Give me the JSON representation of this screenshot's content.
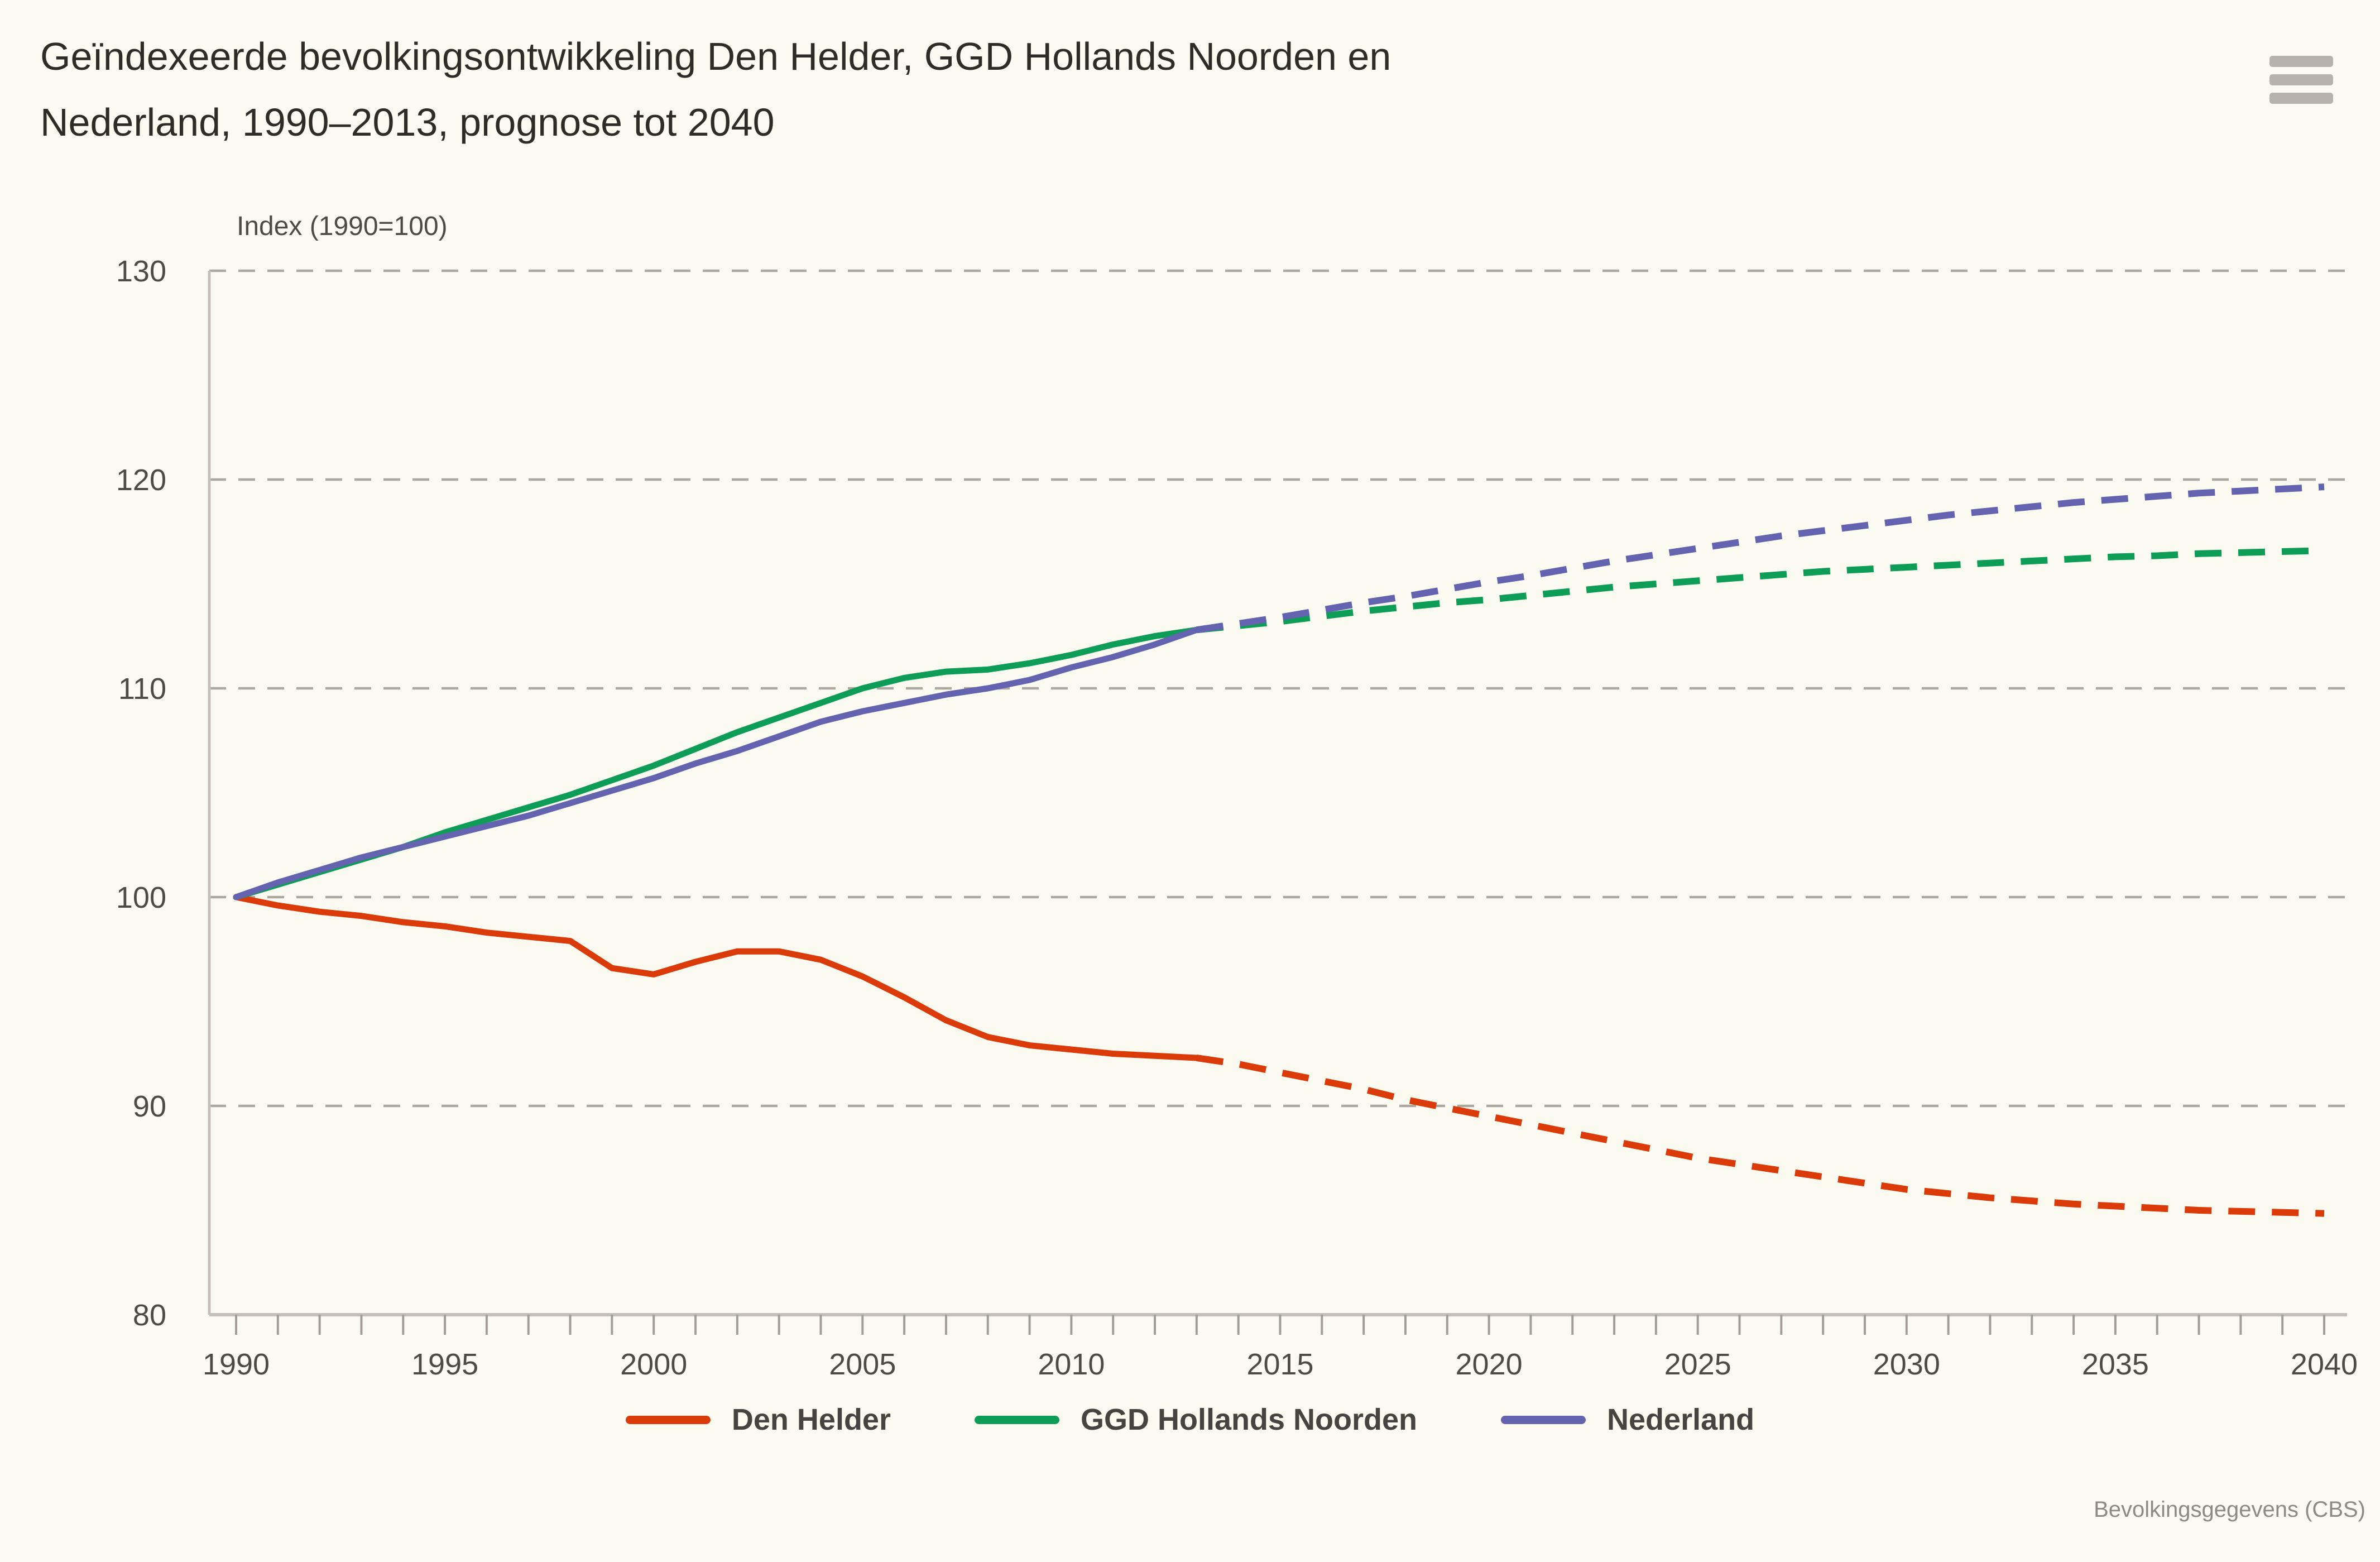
{
  "header": {
    "title_lines": [
      "Geïndexeerde bevolkingsontwikkeling Den Helder, GGD Hollands Noorden en",
      "Nederland, 1990–2013, prognose tot 2040"
    ]
  },
  "source_note": "Bevolkingsgegevens (CBS)",
  "legend": {
    "items": [
      {
        "label": "Den Helder",
        "color": "#DB3A09"
      },
      {
        "label": "GGD Hollands Noorden",
        "color": "#0E9D57"
      },
      {
        "label": "Nederland",
        "color": "#6363AF"
      }
    ]
  },
  "chart_data": {
    "type": "line",
    "title": "Geïndexeerde bevolkingsontwikkeling Den Helder, GGD Hollands Noorden en Nederland, 1990–2013, prognose tot 2040",
    "y_axis": {
      "title": "Index (1990=100)",
      "min": 80,
      "max": 130,
      "tick_labels": [
        130,
        120,
        110,
        100,
        90,
        80
      ],
      "gridlines": "dashed"
    },
    "x_axis": {
      "min": 1990,
      "max": 2040,
      "minor_tick_every": 1,
      "labels": [
        1990,
        1995,
        2000,
        2005,
        2010,
        2015,
        2020,
        2025,
        2030,
        2035,
        2040
      ]
    },
    "legend_position": "bottom",
    "observed_period": "1990-2013",
    "forecast_period": "2013-2040",
    "series": [
      {
        "name": "Den Helder",
        "color": "#DB3A09",
        "observed_start_year": 1990,
        "observed": [
          100,
          99.6,
          99.3,
          99.1,
          98.8,
          98.6,
          98.3,
          98.1,
          97.9,
          96.6,
          96.3,
          96.9,
          97.4,
          97.4,
          97.0,
          96.2,
          95.2,
          94.1,
          93.3,
          92.9,
          92.7,
          92.5,
          92.4,
          92.3
        ],
        "forecast_start_year": 2013,
        "forecast": [
          92.3,
          92.0,
          91.6,
          91.2,
          90.8,
          90.3,
          89.9,
          89.5,
          89.1,
          88.7,
          88.3,
          87.9,
          87.5,
          87.2,
          86.9,
          86.6,
          86.3,
          86.0,
          85.8,
          85.6,
          85.45,
          85.3,
          85.2,
          85.1,
          85.0,
          84.95,
          84.9,
          84.85
        ]
      },
      {
        "name": "GGD Hollands Noorden",
        "color": "#0E9D57",
        "observed_start_year": 1990,
        "observed": [
          100,
          100.6,
          101.2,
          101.8,
          102.4,
          103.1,
          103.7,
          104.3,
          104.9,
          105.6,
          106.3,
          107.1,
          107.9,
          108.6,
          109.3,
          110.0,
          110.5,
          110.8,
          110.9,
          111.2,
          111.6,
          112.1,
          112.5,
          112.8
        ],
        "forecast_start_year": 2013,
        "forecast": [
          112.8,
          113.0,
          113.2,
          113.45,
          113.7,
          113.9,
          114.1,
          114.25,
          114.45,
          114.65,
          114.85,
          115.0,
          115.15,
          115.3,
          115.45,
          115.6,
          115.7,
          115.8,
          115.9,
          116.0,
          116.1,
          116.2,
          116.3,
          116.35,
          116.45,
          116.5,
          116.55,
          116.6
        ]
      },
      {
        "name": "Nederland",
        "color": "#6363AF",
        "observed_start_year": 1990,
        "observed": [
          100,
          100.7,
          101.3,
          101.9,
          102.4,
          102.9,
          103.4,
          103.9,
          104.5,
          105.1,
          105.7,
          106.4,
          107.0,
          107.7,
          108.4,
          108.9,
          109.3,
          109.7,
          110.0,
          110.4,
          111.0,
          111.5,
          112.1,
          112.8
        ],
        "forecast_start_year": 2013,
        "forecast": [
          112.8,
          113.1,
          113.4,
          113.75,
          114.1,
          114.4,
          114.75,
          115.1,
          115.4,
          115.75,
          116.1,
          116.4,
          116.7,
          117.0,
          117.3,
          117.55,
          117.8,
          118.05,
          118.3,
          118.5,
          118.7,
          118.9,
          119.05,
          119.2,
          119.35,
          119.45,
          119.55,
          119.65
        ]
      }
    ]
  }
}
